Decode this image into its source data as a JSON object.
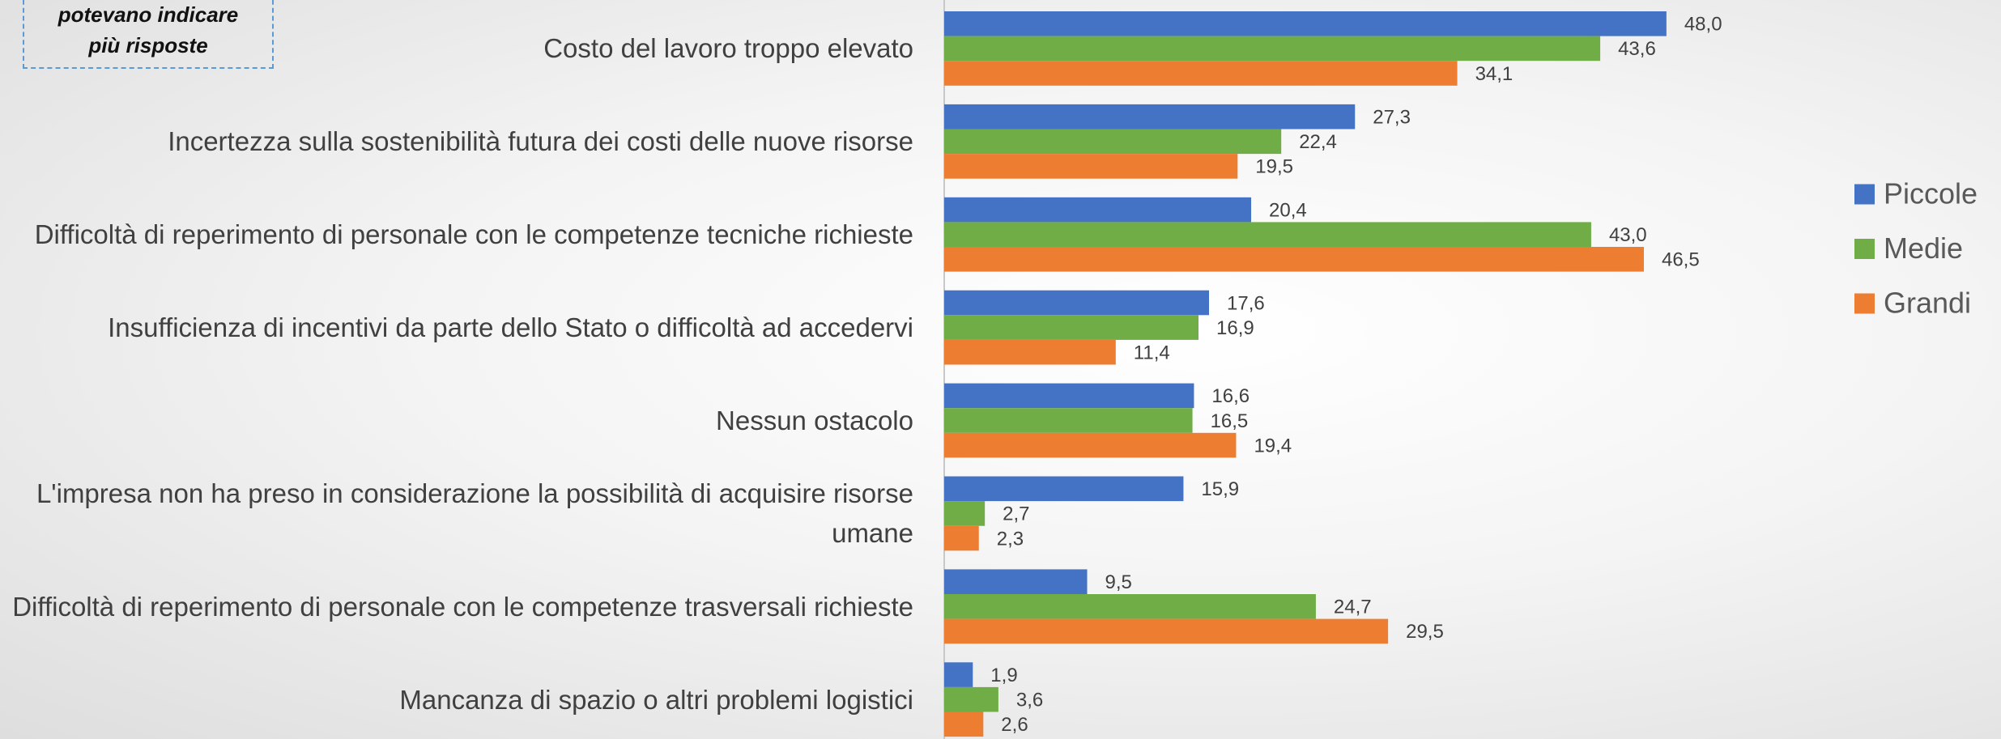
{
  "chart_data": {
    "type": "hbar",
    "annotation_lines": [
      "potevano indicare",
      "più risposte"
    ],
    "categories": [
      "Costo del lavoro troppo elevato",
      "Incertezza sulla sostenibilità futura dei costi delle nuove risorse",
      "Difficoltà di reperimento di personale con le competenze tecniche richieste",
      "Insufficienza di incentivi da parte dello Stato o difficoltà ad accedervi",
      "Nessun ostacolo",
      "L'impresa non ha preso in considerazione la possibilità di acquisire risorse umane",
      "Difficoltà di reperimento di personale con le competenze trasversali richieste",
      "Mancanza di spazio o altri problemi logistici"
    ],
    "series": [
      {
        "name": "Piccole",
        "color": "#4472c4",
        "values": [
          48.0,
          27.3,
          20.4,
          17.6,
          16.6,
          15.9,
          9.5,
          1.9
        ],
        "value_labels": [
          "48,0",
          "27,3",
          "20,4",
          "17,6",
          "16,6",
          "15,9",
          "9,5",
          "1,9"
        ]
      },
      {
        "name": "Medie",
        "color": "#70ad47",
        "values": [
          43.6,
          22.4,
          43.0,
          16.9,
          16.5,
          2.7,
          24.7,
          3.6
        ],
        "value_labels": [
          "43,6",
          "22,4",
          "43,0",
          "16,9",
          "16,5",
          "2,7",
          "24,7",
          "3,6"
        ]
      },
      {
        "name": "Grandi",
        "color": "#ed7d31",
        "values": [
          34.1,
          19.5,
          46.5,
          11.4,
          19.4,
          2.3,
          29.5,
          2.6
        ],
        "value_labels": [
          "34,1",
          "19,5",
          "46,5",
          "11,4",
          "19,4",
          "2,3",
          "29,5",
          "2,6"
        ]
      }
    ],
    "xlim": [
      0,
      60
    ],
    "legend": "right"
  }
}
